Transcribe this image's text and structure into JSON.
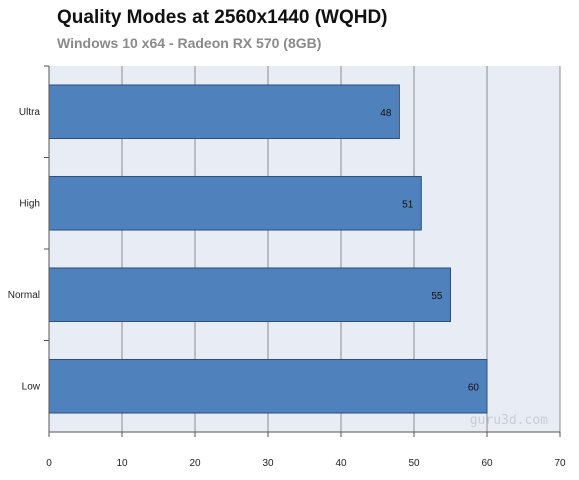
{
  "chart_data": {
    "type": "bar",
    "orientation": "horizontal",
    "title": "Quality Modes at 2560x1440 (WQHD)",
    "subtitle": "Windows 10 x64  - Radeon RX 570 (8GB)",
    "categories": [
      "Ultra",
      "High",
      "Normal",
      "Low"
    ],
    "values": [
      48,
      51,
      55,
      60
    ],
    "xlabel": "",
    "ylabel": "",
    "xlim": [
      0,
      70
    ],
    "xticks": [
      0,
      10,
      20,
      30,
      40,
      50,
      60,
      70
    ],
    "grid": true,
    "legend": "none",
    "watermark": "guru3d.com",
    "colors": {
      "bar_fill": "#4f81bd",
      "bar_stroke": "#2f4f7a",
      "plot_bg": "#e8ecf4",
      "grid": "#8c8c8c"
    }
  }
}
